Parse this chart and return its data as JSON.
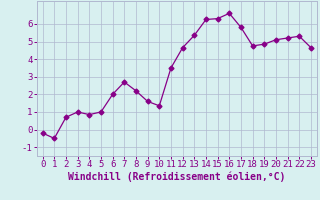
{
  "x": [
    0,
    1,
    2,
    3,
    4,
    5,
    6,
    7,
    8,
    9,
    10,
    11,
    12,
    13,
    14,
    15,
    16,
    17,
    18,
    19,
    20,
    21,
    22,
    23
  ],
  "y": [
    -0.2,
    -0.5,
    0.7,
    1.0,
    0.85,
    1.0,
    2.0,
    2.7,
    2.2,
    1.6,
    1.35,
    3.5,
    4.65,
    5.35,
    6.25,
    6.3,
    6.6,
    5.8,
    4.75,
    4.85,
    5.1,
    5.2,
    5.3,
    4.65
  ],
  "line_color": "#880088",
  "marker": "D",
  "markersize": 2.5,
  "linewidth": 0.9,
  "bg_color": "#d8f0f0",
  "grid_color": "#b0b8d0",
  "xlabel": "Windchill (Refroidissement éolien,°C)",
  "xlabel_fontsize": 7,
  "tick_fontsize": 6.5,
  "xlim": [
    -0.5,
    23.5
  ],
  "ylim": [
    -1.5,
    7.3
  ],
  "yticks": [
    -1,
    0,
    1,
    2,
    3,
    4,
    5,
    6
  ],
  "xticks": [
    0,
    1,
    2,
    3,
    4,
    5,
    6,
    7,
    8,
    9,
    10,
    11,
    12,
    13,
    14,
    15,
    16,
    17,
    18,
    19,
    20,
    21,
    22,
    23
  ]
}
